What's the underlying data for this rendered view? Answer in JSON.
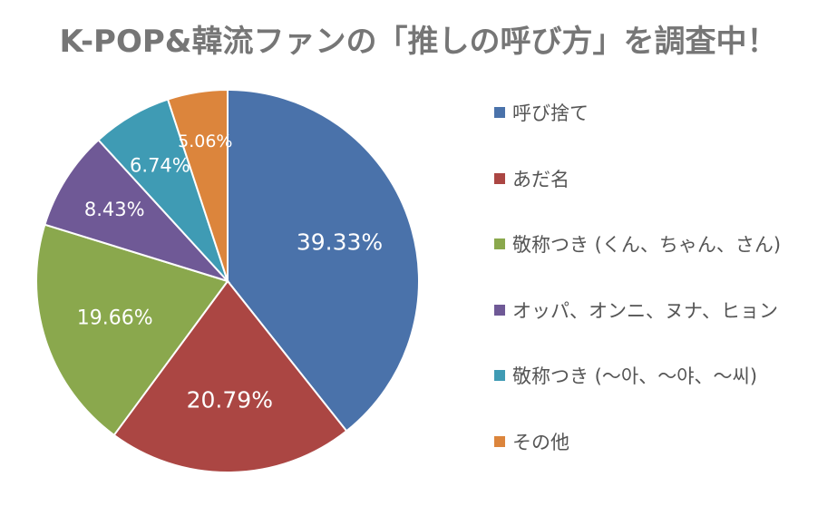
{
  "chart_data": {
    "type": "pie",
    "title": "K-POP&韓流ファンの「推しの呼び方」を調査中！",
    "unit": "%",
    "slices": [
      {
        "label": "呼び捨て",
        "value": 39.33,
        "display": "39.33%",
        "color": "#4a72aa"
      },
      {
        "label": "あだ名",
        "value": 20.79,
        "display": "20.79%",
        "color": "#ab4643"
      },
      {
        "label": "敬称つき (くん、ちゃん、さん)",
        "value": 19.66,
        "display": "19.66%",
        "color": "#8aa84d"
      },
      {
        "label": "オッパ、オンニ、ヌナ、ヒョン",
        "value": 8.43,
        "display": "8.43%",
        "color": "#6f5996"
      },
      {
        "label": "敬称つき (～아、～야、～씨)",
        "value": 6.74,
        "display": "6.74%",
        "color": "#3f9bb4"
      },
      {
        "label": "その他",
        "value": 5.06,
        "display": "5.06%",
        "color": "#dc853c"
      }
    ],
    "legend_position": "right",
    "start_angle": "12 o'clock",
    "direction": "clockwise"
  }
}
